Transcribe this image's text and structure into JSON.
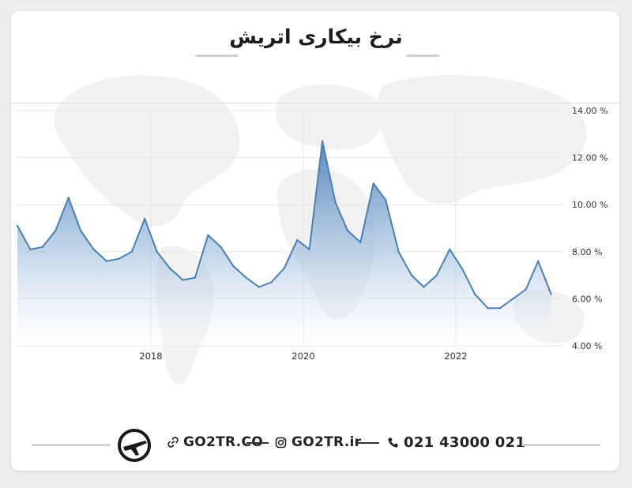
{
  "title": "نرخ بیکاری اتریش",
  "footer": {
    "website": "GO2TR.CO",
    "instagram": "GO2TR.ir",
    "phone": "021 43000 021",
    "icons": [
      "logo-plane-icon",
      "link-icon",
      "instagram-icon",
      "phone-icon"
    ]
  },
  "colors": {
    "line": "#4a7fb5",
    "fill_top": "#4a7fb5",
    "fill_bottom": "#ffffff",
    "grid": "#e6e6e6"
  },
  "chart_data": {
    "type": "area",
    "title": "نرخ بیکاری اتریش",
    "x": [
      2016.25,
      2016.42,
      2016.58,
      2016.75,
      2016.92,
      2017.08,
      2017.25,
      2017.42,
      2017.58,
      2017.75,
      2017.92,
      2018.08,
      2018.25,
      2018.42,
      2018.58,
      2018.75,
      2018.92,
      2019.08,
      2019.25,
      2019.42,
      2019.58,
      2019.75,
      2019.92,
      2020.08,
      2020.25,
      2020.42,
      2020.58,
      2020.75,
      2020.92,
      2021.08,
      2021.25,
      2021.42,
      2021.58,
      2021.75,
      2021.92,
      2022.08,
      2022.25,
      2022.42,
      2022.58,
      2022.75,
      2022.92,
      2023.08,
      2023.25
    ],
    "series": [
      {
        "values": [
          9.1,
          8.1,
          8.2,
          8.9,
          10.3,
          8.9,
          8.1,
          7.6,
          7.7,
          8.0,
          9.4,
          8.0,
          7.3,
          6.8,
          6.9,
          8.7,
          8.2,
          7.4,
          6.9,
          6.5,
          6.7,
          7.3,
          8.5,
          8.1,
          12.7,
          10.1,
          8.9,
          8.4,
          10.9,
          10.2,
          8.0,
          7.0,
          6.5,
          7.0,
          8.1,
          7.3,
          6.2,
          5.6,
          5.6,
          6.0,
          6.4,
          7.6,
          6.2
        ]
      }
    ],
    "xticks": [
      "2018",
      "2020",
      "2022"
    ],
    "xtick_values": [
      2018,
      2020,
      2022
    ],
    "yticks": [
      "4.00 %",
      "6.00 %",
      "8.00 %",
      "10.00 %",
      "12.00 %",
      "14.00 %"
    ],
    "ytick_values": [
      4,
      6,
      8,
      10,
      12,
      14
    ],
    "xlim": [
      2016.25,
      2023.42
    ],
    "ylim": [
      4,
      14
    ],
    "grid": true,
    "y_axis_position": "right"
  }
}
